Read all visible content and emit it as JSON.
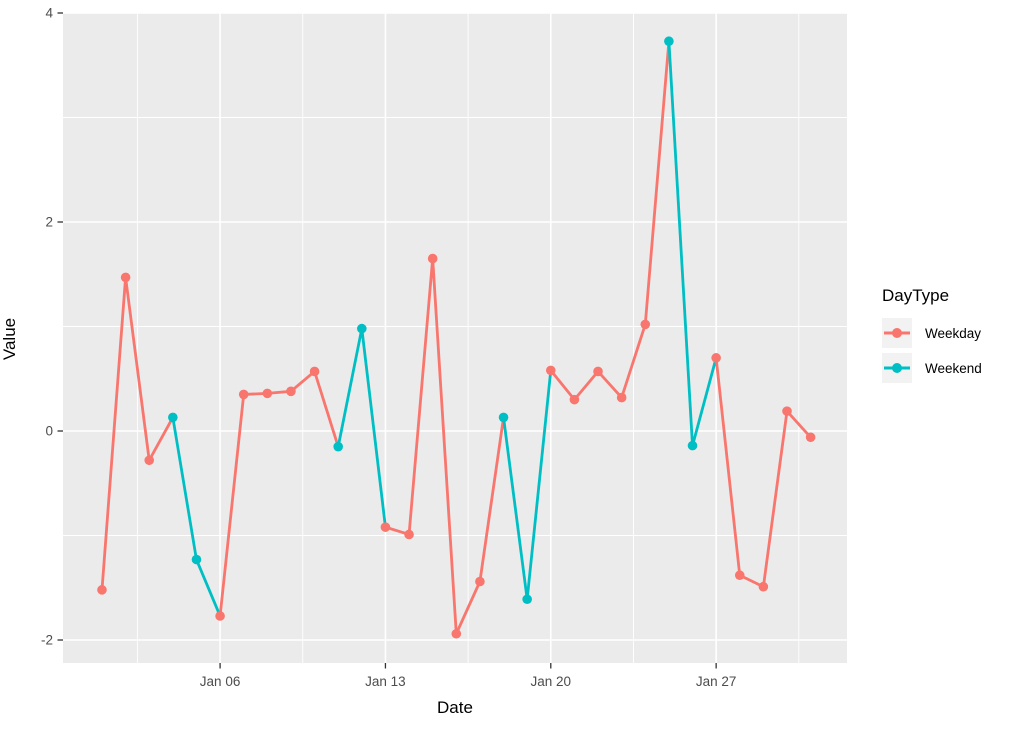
{
  "figure": {
    "background": "#ffffff"
  },
  "legend": {
    "title": "DayType",
    "items": [
      {
        "label": "Weekday",
        "color": "#F8766D"
      },
      {
        "label": "Weekend",
        "color": "#00BFC4"
      }
    ]
  },
  "colors": {
    "weekday": "#F8766D",
    "weekend": "#00BFC4",
    "panel_background": "#EBEBEB",
    "gridline": "#FFFFFF",
    "tick_label": "#4D4D4D",
    "tick_mark": "#333333",
    "axis_title": "#000000",
    "legend_key_background": "#F2F2F2"
  },
  "chart_data": {
    "type": "line",
    "title": "",
    "xlabel": "Date",
    "ylabel": "Value",
    "legend_title": "DayType",
    "legend_position": "right",
    "grid": "major-and-minor-white-on-gray",
    "marker": "filled-circle",
    "segment_color_rule": "each segment uses the color of its preceding (earlier) point",
    "x_tick_labels": [
      {
        "day": 6,
        "label": "Jan 06"
      },
      {
        "day": 13,
        "label": "Jan 13"
      },
      {
        "day": 20,
        "label": "Jan 20"
      },
      {
        "day": 27,
        "label": "Jan 27"
      }
    ],
    "y_ticks": [
      {
        "value": -2,
        "label": "-2"
      },
      {
        "value": 0,
        "label": "0"
      },
      {
        "value": 2,
        "label": "2"
      },
      {
        "value": 4,
        "label": "4"
      }
    ],
    "x_minor_days": [
      2.5,
      9.5,
      16.5,
      23.5,
      30.5
    ],
    "y_minor_values": [
      -1,
      1,
      3
    ],
    "xlim_days": [
      -0.65,
      32.54
    ],
    "ylim": [
      -2.22,
      4.0
    ],
    "points": [
      {
        "date": "Jan 01",
        "day": 1,
        "value": -1.52,
        "day_type": "Weekday"
      },
      {
        "date": "Jan 02",
        "day": 2,
        "value": 1.47,
        "day_type": "Weekday"
      },
      {
        "date": "Jan 03",
        "day": 3,
        "value": -0.28,
        "day_type": "Weekday"
      },
      {
        "date": "Jan 04",
        "day": 4,
        "value": 0.13,
        "day_type": "Weekend"
      },
      {
        "date": "Jan 05",
        "day": 5,
        "value": -1.23,
        "day_type": "Weekend"
      },
      {
        "date": "Jan 06",
        "day": 6,
        "value": -1.77,
        "day_type": "Weekday"
      },
      {
        "date": "Jan 07",
        "day": 7,
        "value": 0.35,
        "day_type": "Weekday"
      },
      {
        "date": "Jan 08",
        "day": 8,
        "value": 0.36,
        "day_type": "Weekday"
      },
      {
        "date": "Jan 09",
        "day": 9,
        "value": 0.38,
        "day_type": "Weekday"
      },
      {
        "date": "Jan 10",
        "day": 10,
        "value": 0.57,
        "day_type": "Weekday"
      },
      {
        "date": "Jan 11",
        "day": 11,
        "value": -0.15,
        "day_type": "Weekend"
      },
      {
        "date": "Jan 12",
        "day": 12,
        "value": 0.98,
        "day_type": "Weekend"
      },
      {
        "date": "Jan 13",
        "day": 13,
        "value": -0.92,
        "day_type": "Weekday"
      },
      {
        "date": "Jan 14",
        "day": 14,
        "value": -0.99,
        "day_type": "Weekday"
      },
      {
        "date": "Jan 15",
        "day": 15,
        "value": 1.65,
        "day_type": "Weekday"
      },
      {
        "date": "Jan 16",
        "day": 16,
        "value": -1.94,
        "day_type": "Weekday"
      },
      {
        "date": "Jan 17",
        "day": 17,
        "value": -1.44,
        "day_type": "Weekday"
      },
      {
        "date": "Jan 18",
        "day": 18,
        "value": 0.13,
        "day_type": "Weekend"
      },
      {
        "date": "Jan 19",
        "day": 19,
        "value": -1.61,
        "day_type": "Weekend"
      },
      {
        "date": "Jan 20",
        "day": 20,
        "value": 0.58,
        "day_type": "Weekday"
      },
      {
        "date": "Jan 21",
        "day": 21,
        "value": 0.3,
        "day_type": "Weekday"
      },
      {
        "date": "Jan 22",
        "day": 22,
        "value": 0.57,
        "day_type": "Weekday"
      },
      {
        "date": "Jan 23",
        "day": 23,
        "value": 0.32,
        "day_type": "Weekday"
      },
      {
        "date": "Jan 24",
        "day": 24,
        "value": 1.02,
        "day_type": "Weekday"
      },
      {
        "date": "Jan 25",
        "day": 25,
        "value": 3.73,
        "day_type": "Weekend"
      },
      {
        "date": "Jan 26",
        "day": 26,
        "value": -0.14,
        "day_type": "Weekend"
      },
      {
        "date": "Jan 27",
        "day": 27,
        "value": 0.7,
        "day_type": "Weekday"
      },
      {
        "date": "Jan 28",
        "day": 28,
        "value": -1.38,
        "day_type": "Weekday"
      },
      {
        "date": "Jan 29",
        "day": 29,
        "value": -1.49,
        "day_type": "Weekday"
      },
      {
        "date": "Jan 30",
        "day": 30,
        "value": 0.19,
        "day_type": "Weekday"
      },
      {
        "date": "Jan 31",
        "day": 31,
        "value": -0.06,
        "day_type": "Weekday"
      }
    ]
  }
}
